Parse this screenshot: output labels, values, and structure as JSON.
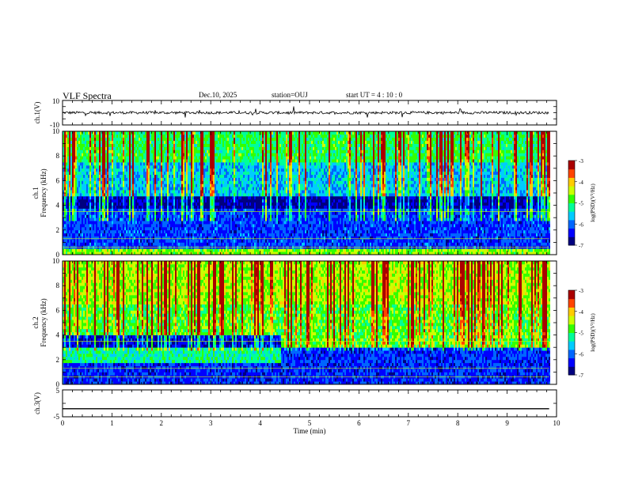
{
  "header": {
    "title": "VLF Spectra",
    "date": "Dec.10, 2025",
    "station": "station=OUJ",
    "start_ut": "start UT =  4 : 10 : 0"
  },
  "chart_data": [
    {
      "type": "line",
      "panel": "ch.1 waveform",
      "ylabel": "ch.1(V)",
      "ylim": [
        -10,
        10
      ],
      "yticks": [
        "10",
        "-10"
      ],
      "baseline": 0,
      "xlim": [
        0,
        10
      ],
      "x_end": 9.85
    },
    {
      "type": "heatmap",
      "panel": "ch.1 spectrogram",
      "ylabel": "ch.1\nFrequency (kHz)",
      "ylim": [
        0,
        10
      ],
      "yticks": [
        "0",
        "2",
        "4",
        "6",
        "8",
        "10"
      ],
      "xlim": [
        0,
        10
      ],
      "x_end": 9.85,
      "colorbar": {
        "label": "log(PSD)(V²/Hz)",
        "range": [
          -7,
          -3
        ],
        "ticks": [
          "-3",
          "-4",
          "-5",
          "-6",
          "-7"
        ]
      },
      "bands": [
        {
          "from": 0,
          "to": 0.5,
          "level": 0.6
        },
        {
          "from": 0.5,
          "to": 3.6,
          "level": 0.2
        },
        {
          "from": 3.6,
          "to": 4.6,
          "level": 0.06
        },
        {
          "from": 4.6,
          "to": 7.5,
          "level": 0.35
        },
        {
          "from": 7.5,
          "to": 10,
          "level": 0.5
        }
      ]
    },
    {
      "type": "heatmap",
      "panel": "ch.2 spectrogram",
      "ylabel": "ch.2\nFrequency (kHz)",
      "ylim": [
        0,
        10
      ],
      "yticks": [
        "0",
        "2",
        "4",
        "6",
        "8",
        "10"
      ],
      "xlim": [
        0,
        10
      ],
      "x_end": 9.85,
      "colorbar": {
        "label": "log(PSD)(V²/Hz)",
        "range": [
          -7,
          -3
        ],
        "ticks": [
          "-3",
          "-4",
          "-5",
          "-6",
          "-7"
        ]
      },
      "bands": [
        {
          "from": 0,
          "to": 1.7,
          "level": 0.18
        },
        {
          "from": 1.7,
          "to": 2.8,
          "level": 0.45,
          "after_min": 4.4,
          "after_level": 0.18
        },
        {
          "from": 2.8,
          "to": 3.8,
          "level": 0.12,
          "after_min": 4.4,
          "after_level": 0.55
        },
        {
          "from": 3.8,
          "to": 6.5,
          "level": 0.55
        },
        {
          "from": 6.5,
          "to": 10,
          "level": 0.62
        }
      ]
    },
    {
      "type": "line",
      "panel": "ch.3 waveform",
      "ylabel": "ch.3(V)",
      "ylim": [
        -5,
        5
      ],
      "yticks": [
        "5",
        "-5"
      ],
      "baseline": -2,
      "xlim": [
        0,
        10
      ],
      "x_end": 9.85,
      "xlabel": "Time (min)",
      "xticks": [
        "0",
        "1",
        "2",
        "3",
        "4",
        "5",
        "6",
        "7",
        "8",
        "9",
        "10"
      ]
    }
  ],
  "colors": {
    "axis": "#000000",
    "waveform": "#000000",
    "colormap": [
      "#000080",
      "#0000ff",
      "#0066ff",
      "#00ccff",
      "#00ff99",
      "#33ff00",
      "#ccff00",
      "#ffcc00",
      "#ff4400",
      "#aa0000"
    ]
  }
}
